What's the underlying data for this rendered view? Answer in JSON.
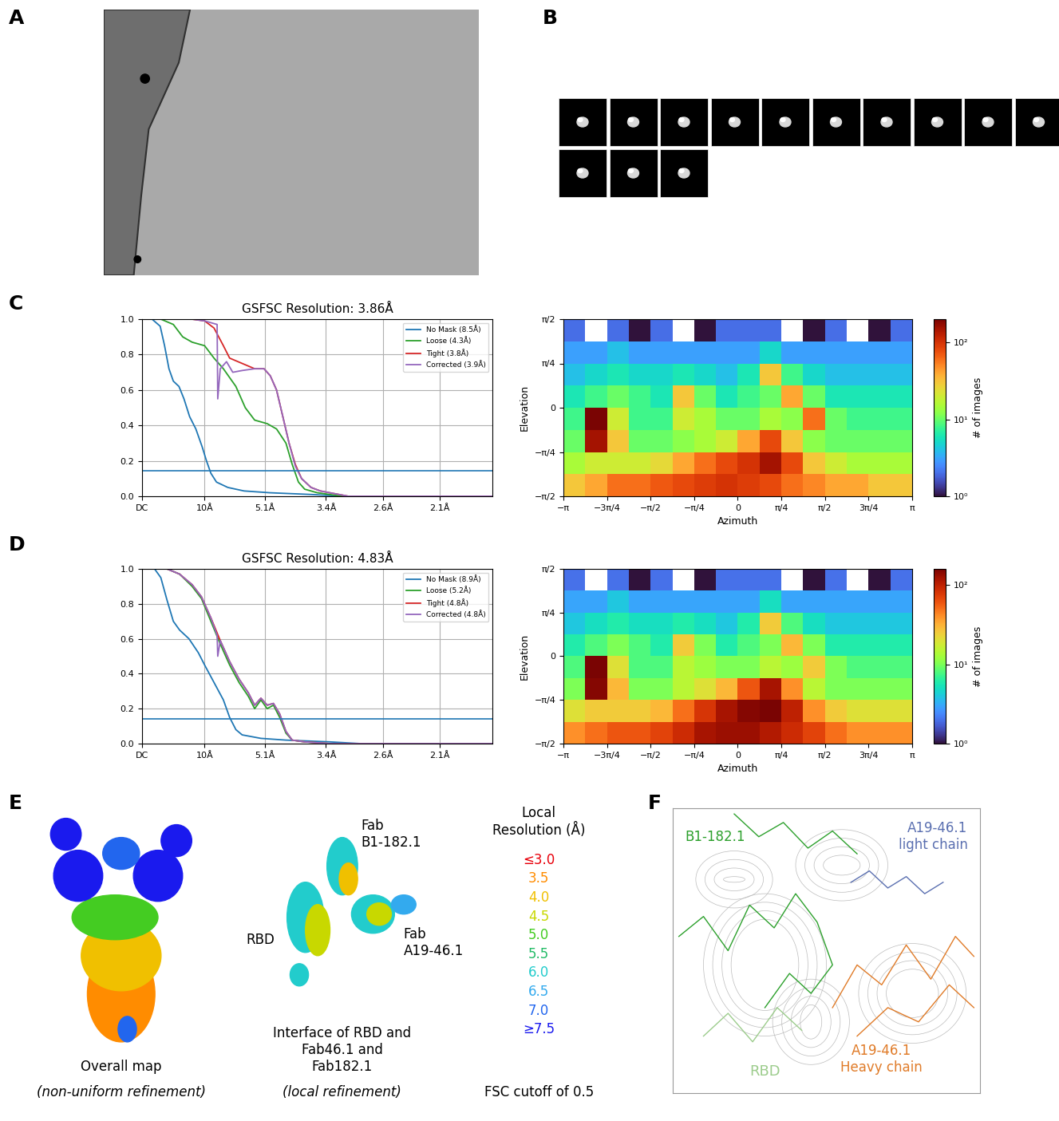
{
  "panel_labels": [
    "A",
    "B",
    "C",
    "D",
    "E",
    "F"
  ],
  "chart_data": [
    {
      "type": "line",
      "title": "GSFSC Resolution: 3.86Å",
      "xlim": [
        0,
        0.56
      ],
      "xticks": [
        {
          "value": 0,
          "label": "DC"
        },
        {
          "value": 0.1,
          "label": "10Å"
        },
        {
          "value": 0.196,
          "label": "5.1Å"
        },
        {
          "value": 0.294,
          "label": "3.4Å"
        },
        {
          "value": 0.385,
          "label": "2.6Å"
        },
        {
          "value": 0.476,
          "label": "2.1Å"
        }
      ],
      "ylim": [
        0,
        1
      ],
      "yticks": [
        {
          "value": 0,
          "label": "0.0"
        },
        {
          "value": 0.2,
          "label": "0.2"
        },
        {
          "value": 0.4,
          "label": "0.4"
        },
        {
          "value": 0.6,
          "label": "0.6"
        },
        {
          "value": 0.8,
          "label": "0.8"
        },
        {
          "value": 1,
          "label": "1.0"
        }
      ],
      "grid": true,
      "legend": "upper right",
      "threshold": 0.143,
      "series": [
        {
          "name": "No Mask (8.5Å)",
          "color": "#1f77b4",
          "x": [
            0,
            0.016,
            0.029,
            0.036,
            0.043,
            0.05,
            0.059,
            0.067,
            0.076,
            0.086,
            0.096,
            0.103,
            0.11,
            0.119,
            0.137,
            0.163,
            0.204,
            0.271,
            0.324,
            0.56
          ],
          "values": [
            1.0,
            1.0,
            0.96,
            0.85,
            0.72,
            0.65,
            0.62,
            0.55,
            0.45,
            0.38,
            0.28,
            0.2,
            0.13,
            0.08,
            0.05,
            0.03,
            0.02,
            0.01,
            0.0,
            0.0
          ]
        },
        {
          "name": "Loose (4.3Å)",
          "color": "#2ca02c",
          "x": [
            0,
            0.03,
            0.05,
            0.065,
            0.08,
            0.1,
            0.115,
            0.13,
            0.15,
            0.165,
            0.18,
            0.2,
            0.215,
            0.23,
            0.24,
            0.25,
            0.26,
            0.28,
            0.32,
            0.56
          ],
          "values": [
            1.0,
            1.0,
            0.97,
            0.9,
            0.87,
            0.85,
            0.78,
            0.72,
            0.62,
            0.5,
            0.43,
            0.41,
            0.38,
            0.3,
            0.18,
            0.08,
            0.04,
            0.02,
            0.0,
            0.0
          ]
        },
        {
          "name": "Tight (3.8Å)",
          "color": "#d62728",
          "x": [
            0,
            0.08,
            0.1,
            0.115,
            0.13,
            0.14,
            0.16,
            0.18,
            0.195,
            0.205,
            0.215,
            0.225,
            0.235,
            0.245,
            0.255,
            0.27,
            0.285,
            0.3,
            0.33,
            0.56
          ],
          "values": [
            1.0,
            1.0,
            0.99,
            0.95,
            0.85,
            0.78,
            0.75,
            0.72,
            0.72,
            0.68,
            0.6,
            0.45,
            0.3,
            0.18,
            0.1,
            0.05,
            0.03,
            0.02,
            0.0,
            0.0
          ]
        },
        {
          "name": "Corrected (3.9Å)",
          "color": "#9467bd",
          "x": [
            0,
            0.08,
            0.1,
            0.12,
            0.121,
            0.125,
            0.135,
            0.145,
            0.16,
            0.18,
            0.195,
            0.205,
            0.215,
            0.225,
            0.235,
            0.245,
            0.255,
            0.27,
            0.285,
            0.3,
            0.33,
            0.56
          ],
          "values": [
            1.0,
            1.0,
            0.99,
            0.97,
            0.55,
            0.72,
            0.76,
            0.7,
            0.71,
            0.72,
            0.72,
            0.68,
            0.6,
            0.45,
            0.3,
            0.17,
            0.1,
            0.05,
            0.03,
            0.02,
            0.0,
            0.0
          ]
        }
      ]
    },
    {
      "type": "heatmap",
      "xlabel": "Azimuth",
      "ylabel": "Elevation",
      "xlim": [
        -3.1416,
        3.1416
      ],
      "ylim": [
        -1.5708,
        1.5708
      ],
      "xticks": [
        {
          "value": -3.1416,
          "label": "−π"
        },
        {
          "value": -2.3562,
          "label": "−3π/4"
        },
        {
          "value": -1.5708,
          "label": "−π/2"
        },
        {
          "value": -0.7854,
          "label": "−π/4"
        },
        0,
        {
          "value": 0.7854,
          "label": "π/4"
        },
        {
          "value": 1.5708,
          "label": "π/2"
        },
        {
          "value": 2.3562,
          "label": "3π/4"
        },
        {
          "value": 3.1416,
          "label": "π"
        }
      ],
      "yticks": [
        {
          "value": -1.5708,
          "label": "−π/2"
        },
        {
          "value": -0.7854,
          "label": "−π/4"
        },
        0,
        {
          "value": 0.7854,
          "label": "π/4"
        },
        {
          "value": 1.5708,
          "label": "π/2"
        }
      ],
      "x_edges": [
        -3.1416,
        -2.7489,
        -2.3562,
        -1.9635,
        -1.5708,
        -1.1781,
        -0.7854,
        -0.3927,
        0,
        0.3927,
        0.7854,
        1.1781,
        1.5708,
        1.9635,
        2.3562,
        2.7489,
        3.1416
      ],
      "y_edges": [
        -1.5708,
        -1.1781,
        -0.7854,
        -0.3927,
        0,
        0.3927,
        0.7854,
        1.1781,
        1.5708
      ],
      "cells": [
        [
          30,
          40,
          60,
          60,
          70,
          80,
          90,
          100,
          90,
          80,
          60,
          50,
          40,
          40,
          30,
          30
        ],
        [
          15,
          20,
          20,
          20,
          25,
          40,
          60,
          80,
          100,
          150,
          80,
          30,
          20,
          15,
          15,
          15
        ],
        [
          10,
          150,
          30,
          10,
          10,
          12,
          15,
          20,
          40,
          80,
          30,
          12,
          10,
          10,
          10,
          10
        ],
        [
          8,
          200,
          20,
          8,
          8,
          20,
          15,
          10,
          10,
          15,
          12,
          60,
          10,
          8,
          8,
          8
        ],
        [
          6,
          8,
          10,
          8,
          6,
          30,
          10,
          6,
          8,
          10,
          40,
          10,
          6,
          6,
          6,
          6
        ],
        [
          4,
          5,
          6,
          5,
          5,
          6,
          5,
          4,
          6,
          30,
          8,
          5,
          4,
          4,
          4,
          4
        ],
        [
          3,
          3,
          4,
          3,
          3,
          3,
          3,
          3,
          3,
          5,
          3,
          3,
          3,
          3,
          3,
          3
        ],
        [
          2,
          null,
          2,
          1,
          2,
          null,
          1,
          2,
          2,
          2,
          null,
          1,
          2,
          null,
          1,
          2
        ]
      ],
      "colorbar": {
        "label": "# of images",
        "log": true,
        "range": [
          1,
          200
        ],
        "ticks": [
          {
            "value": 1,
            "label": "10⁰"
          },
          {
            "value": 10,
            "label": "10¹"
          },
          {
            "value": 100,
            "label": "10²"
          }
        ]
      }
    },
    {
      "type": "line",
      "title": "GSFSC Resolution: 4.83Å",
      "xlim": [
        0,
        0.56
      ],
      "xticks": [
        {
          "value": 0,
          "label": "DC"
        },
        {
          "value": 0.1,
          "label": "10Å"
        },
        {
          "value": 0.196,
          "label": "5.1Å"
        },
        {
          "value": 0.294,
          "label": "3.4Å"
        },
        {
          "value": 0.385,
          "label": "2.6Å"
        },
        {
          "value": 0.476,
          "label": "2.1Å"
        }
      ],
      "ylim": [
        0,
        1
      ],
      "yticks": [
        {
          "value": 0,
          "label": "0.0"
        },
        {
          "value": 0.2,
          "label": "0.2"
        },
        {
          "value": 0.4,
          "label": "0.4"
        },
        {
          "value": 0.6,
          "label": "0.6"
        },
        {
          "value": 0.8,
          "label": "0.8"
        },
        {
          "value": 1,
          "label": "1.0"
        }
      ],
      "grid": true,
      "legend": "upper right",
      "threshold": 0.143,
      "series": [
        {
          "name": "No Mask (8.9Å)",
          "color": "#1f77b4",
          "x": [
            0,
            0.02,
            0.03,
            0.04,
            0.05,
            0.06,
            0.075,
            0.09,
            0.1,
            0.115,
            0.13,
            0.14,
            0.15,
            0.16,
            0.19,
            0.23,
            0.3,
            0.35,
            0.56
          ],
          "values": [
            1.0,
            1.0,
            0.95,
            0.82,
            0.7,
            0.65,
            0.6,
            0.52,
            0.45,
            0.35,
            0.25,
            0.15,
            0.08,
            0.05,
            0.03,
            0.02,
            0.01,
            0.0,
            0.0
          ]
        },
        {
          "name": "Loose (5.2Å)",
          "color": "#2ca02c",
          "x": [
            0,
            0.04,
            0.06,
            0.08,
            0.095,
            0.11,
            0.125,
            0.14,
            0.155,
            0.17,
            0.18,
            0.19,
            0.2,
            0.21,
            0.22,
            0.23,
            0.24,
            0.26,
            0.3,
            0.56
          ],
          "values": [
            1.0,
            1.0,
            0.97,
            0.9,
            0.83,
            0.7,
            0.57,
            0.45,
            0.35,
            0.27,
            0.2,
            0.25,
            0.2,
            0.22,
            0.15,
            0.06,
            0.02,
            0.01,
            0.0,
            0.0
          ]
        },
        {
          "name": "Tight (4.8Å)",
          "color": "#d62728",
          "x": [
            0,
            0.04,
            0.06,
            0.08,
            0.095,
            0.11,
            0.125,
            0.14,
            0.155,
            0.17,
            0.18,
            0.19,
            0.2,
            0.21,
            0.22,
            0.23,
            0.24,
            0.26,
            0.3,
            0.56
          ],
          "values": [
            1.0,
            1.0,
            0.97,
            0.91,
            0.84,
            0.72,
            0.59,
            0.47,
            0.37,
            0.29,
            0.22,
            0.26,
            0.22,
            0.23,
            0.17,
            0.07,
            0.02,
            0.01,
            0.0,
            0.0
          ]
        },
        {
          "name": "Corrected (4.8Å)",
          "color": "#9467bd",
          "x": [
            0,
            0.04,
            0.06,
            0.08,
            0.095,
            0.11,
            0.12,
            0.121,
            0.125,
            0.14,
            0.155,
            0.17,
            0.18,
            0.19,
            0.2,
            0.21,
            0.22,
            0.23,
            0.24,
            0.26,
            0.3,
            0.56
          ],
          "values": [
            1.0,
            1.0,
            0.97,
            0.91,
            0.84,
            0.72,
            0.62,
            0.5,
            0.59,
            0.47,
            0.37,
            0.29,
            0.22,
            0.26,
            0.22,
            0.23,
            0.17,
            0.07,
            0.02,
            0.01,
            0.0,
            0.0
          ]
        }
      ]
    },
    {
      "type": "heatmap",
      "xlabel": "Azimuth",
      "ylabel": "Elevation",
      "xlim": [
        -3.1416,
        3.1416
      ],
      "ylim": [
        -1.5708,
        1.5708
      ],
      "xticks": [
        {
          "value": -3.1416,
          "label": "−π"
        },
        {
          "value": -2.3562,
          "label": "−3π/4"
        },
        {
          "value": -1.5708,
          "label": "−π/2"
        },
        {
          "value": -0.7854,
          "label": "−π/4"
        },
        0,
        {
          "value": 0.7854,
          "label": "π/4"
        },
        {
          "value": 1.5708,
          "label": "π/2"
        },
        {
          "value": 2.3562,
          "label": "3π/4"
        },
        {
          "value": 3.1416,
          "label": "π"
        }
      ],
      "yticks": [
        {
          "value": -1.5708,
          "label": "−π/2"
        },
        {
          "value": -0.7854,
          "label": "−π/4"
        },
        0,
        {
          "value": 0.7854,
          "label": "π/4"
        },
        {
          "value": 1.5708,
          "label": "π/2"
        }
      ],
      "x_edges": [
        -3.1416,
        -2.7489,
        -2.3562,
        -1.9635,
        -1.5708,
        -1.1781,
        -0.7854,
        -0.3927,
        0,
        0.3927,
        0.7854,
        1.1781,
        1.5708,
        1.9635,
        2.3562,
        2.7489,
        3.1416
      ],
      "y_edges": [
        -1.5708,
        -1.1781,
        -0.7854,
        -0.3927,
        0,
        0.3927,
        0.7854,
        1.1781,
        1.5708
      ],
      "cells": [
        [
          40,
          50,
          60,
          60,
          70,
          90,
          120,
          130,
          130,
          110,
          90,
          70,
          50,
          40,
          40,
          40
        ],
        [
          20,
          25,
          25,
          25,
          30,
          50,
          80,
          120,
          150,
          170,
          100,
          40,
          25,
          20,
          20,
          20
        ],
        [
          10,
          150,
          30,
          10,
          10,
          15,
          20,
          30,
          60,
          120,
          40,
          15,
          10,
          10,
          10,
          10
        ],
        [
          8,
          170,
          20,
          8,
          8,
          15,
          12,
          10,
          10,
          15,
          12,
          25,
          10,
          8,
          8,
          8
        ],
        [
          6,
          8,
          10,
          8,
          6,
          25,
          10,
          6,
          8,
          10,
          30,
          10,
          6,
          6,
          6,
          6
        ],
        [
          4,
          5,
          6,
          5,
          5,
          6,
          5,
          4,
          6,
          25,
          8,
          5,
          4,
          4,
          4,
          4
        ],
        [
          3,
          3,
          4,
          3,
          3,
          3,
          3,
          3,
          3,
          5,
          3,
          3,
          3,
          3,
          3,
          3
        ],
        [
          2,
          null,
          2,
          1,
          2,
          null,
          1,
          2,
          2,
          2,
          null,
          1,
          2,
          null,
          1,
          2
        ]
      ],
      "colorbar": {
        "label": "# of images",
        "log": true,
        "range": [
          1,
          160
        ],
        "ticks": [
          {
            "value": 1,
            "label": "10⁰"
          },
          {
            "value": 10,
            "label": "10¹"
          },
          {
            "value": 100,
            "label": "10²"
          }
        ]
      }
    }
  ],
  "panel_E": {
    "overall_map": {
      "caption": "Overall map",
      "method": "(non-uniform refinement)"
    },
    "interface": {
      "caption": "Interface of RBD and\nFab46.1 and\nFab182.1",
      "method": "(local refinement)",
      "labels": [
        "Fab\nB1-182.1",
        "RBD",
        "Fab\nA19-46.1"
      ]
    },
    "local_resolution": {
      "title": "Local\nResolution (Å)",
      "levels": [
        {
          "label": "≤3.0",
          "color": "#e8000b"
        },
        {
          "label": "3.5",
          "color": "#ff8c00"
        },
        {
          "label": "4.0",
          "color": "#f0c000"
        },
        {
          "label": "4.5",
          "color": "#c8d800"
        },
        {
          "label": "5.0",
          "color": "#44cc22"
        },
        {
          "label": "5.5",
          "color": "#22bb66"
        },
        {
          "label": "6.0",
          "color": "#22cccc"
        },
        {
          "label": "6.5",
          "color": "#33aaee"
        },
        {
          "label": "7.0",
          "color": "#2266ee"
        },
        {
          "label": "≥7.5",
          "color": "#1a1aee"
        }
      ],
      "note": "FSC cutoff of 0.5"
    }
  },
  "panel_F": {
    "labels": [
      {
        "text": "B1-182.1",
        "color": "#2ca02c"
      },
      {
        "text": "A19-46.1\nlight chain",
        "color": "#5a6fb0"
      },
      {
        "text": "RBD",
        "color": "#9ccc8c"
      },
      {
        "text": "A19-46.1\nHeavy chain",
        "color": "#e07b28"
      }
    ]
  }
}
